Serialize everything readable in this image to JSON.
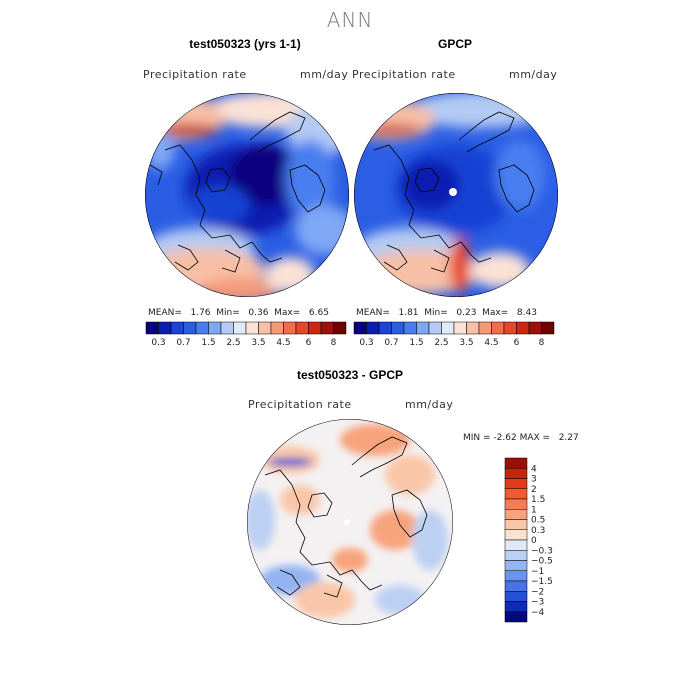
{
  "chart_data": [
    {
      "type": "heatmap",
      "projection": "north-polar-stereographic",
      "figure_title": "ANN",
      "title": "test050323 (yrs 1-1)",
      "variable": "Precipitation rate",
      "units": "mm/day",
      "stats": {
        "mean_label": "MEAN=",
        "mean": "1.76",
        "min_label": "Min=",
        "min": "0.36",
        "max_label": "Max=",
        "max": "6.65"
      },
      "colorbar": {
        "levels": [
          0.3,
          0.5,
          0.7,
          1,
          1.5,
          2,
          2.5,
          3,
          3.5,
          4,
          4.5,
          5,
          6,
          7,
          8
        ],
        "tick_labels": [
          "0.3",
          "0.7",
          "1.5",
          "2.5",
          "3.5",
          "4.5",
          "6",
          "8"
        ],
        "colors": [
          "#08007e",
          "#0a1eb0",
          "#1843d4",
          "#2b5ee5",
          "#4a7ef0",
          "#7ea7f4",
          "#b3cbf3",
          "#e1ebf7",
          "#fbe2d5",
          "#f7c0a6",
          "#f59a78",
          "#f26d4c",
          "#e8452a",
          "#cc2814",
          "#9c1109",
          "#6a0500"
        ]
      }
    },
    {
      "type": "heatmap",
      "projection": "north-polar-stereographic",
      "title": "GPCP",
      "variable": "Precipitation rate",
      "units": "mm/day",
      "stats": {
        "mean_label": "MEAN=",
        "mean": "1.81",
        "min_label": "Min=",
        "min": "0.23",
        "max_label": "Max=",
        "max": "8.43"
      },
      "colorbar": {
        "levels": [
          0.3,
          0.5,
          0.7,
          1,
          1.5,
          2,
          2.5,
          3,
          3.5,
          4,
          4.5,
          5,
          6,
          7,
          8
        ],
        "tick_labels": [
          "0.3",
          "0.7",
          "1.5",
          "2.5",
          "3.5",
          "4.5",
          "6",
          "8"
        ],
        "colors": [
          "#08007e",
          "#0a1eb0",
          "#1843d4",
          "#2b5ee5",
          "#4a7ef0",
          "#7ea7f4",
          "#b3cbf3",
          "#e1ebf7",
          "#fbe2d5",
          "#f7c0a6",
          "#f59a78",
          "#f26d4c",
          "#e8452a",
          "#cc2814",
          "#9c1109",
          "#6a0500"
        ]
      }
    },
    {
      "type": "heatmap",
      "projection": "north-polar-stereographic",
      "title": "test050323 - GPCP",
      "variable": "Precipitation rate",
      "units": "mm/day",
      "stats": {
        "min_label": "MIN =",
        "min": "-2.62",
        "max_label": "MAX =",
        "max": "2.27"
      },
      "colorbar": {
        "orientation": "vertical",
        "levels": [
          -4,
          -3,
          -2,
          -1.5,
          -1,
          -0.5,
          -0.3,
          0,
          0.3,
          0.5,
          1,
          1.5,
          2,
          3,
          4
        ],
        "tick_labels": [
          "4",
          "3",
          "2",
          "1.5",
          "1",
          "0.5",
          "0.3",
          "0",
          "−0.3",
          "−0.5",
          "−1",
          "−1.5",
          "−2",
          "−3",
          "−4"
        ],
        "colors": [
          "#9c0e08",
          "#c42410",
          "#e23b1c",
          "#f05a30",
          "#f47d55",
          "#f7a37c",
          "#f9c6a8",
          "#fbe3d2",
          "#dfe8f6",
          "#bcd0f3",
          "#93b4f1",
          "#6c93ee",
          "#4673e6",
          "#2451d6",
          "#0f2db3",
          "#040a7e"
        ]
      }
    }
  ]
}
